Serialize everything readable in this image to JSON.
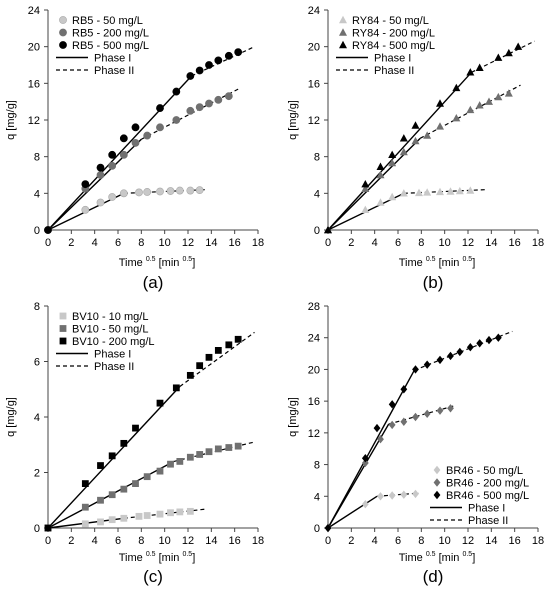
{
  "chart_data": [
    {
      "type": "scatter",
      "caption": "(a)",
      "xlabel": "Time",
      "xlabel_sup": "0.5",
      "xlabel_unit": "[min",
      "xlabel_unit_sup": "0.5",
      "xlabel_end": "]",
      "ylabel": "q [mg/g]",
      "xlim": [
        0,
        18
      ],
      "ylim": [
        0,
        24
      ],
      "xticks": [
        0,
        2,
        4,
        6,
        8,
        10,
        12,
        14,
        16,
        18
      ],
      "yticks": [
        0,
        4,
        8,
        12,
        16,
        20,
        24
      ],
      "legend_position": "top-left",
      "marker": "circle",
      "series": [
        {
          "name": "RB5 - 50 mg/L",
          "color": "#c8c8c8",
          "points": [
            [
              0,
              0
            ],
            [
              3.2,
              2.2
            ],
            [
              4.5,
              3.0
            ],
            [
              5.5,
              3.6
            ],
            [
              6.5,
              4.0
            ],
            [
              7.8,
              4.1
            ],
            [
              8.5,
              4.15
            ],
            [
              9.6,
              4.2
            ],
            [
              10.5,
              4.25
            ],
            [
              11.3,
              4.3
            ],
            [
              12.2,
              4.3
            ],
            [
              13.0,
              4.35
            ]
          ],
          "phase1": [
            [
              0,
              0
            ],
            [
              6.5,
              4.0
            ]
          ],
          "phase2": [
            [
              6.5,
              4.0
            ],
            [
              13.5,
              4.4
            ]
          ]
        },
        {
          "name": "RB5 - 200 mg/L",
          "color": "#707070",
          "points": [
            [
              0,
              0
            ],
            [
              3.2,
              4.5
            ],
            [
              4.5,
              6.0
            ],
            [
              5.5,
              7.0
            ],
            [
              6.5,
              8.2
            ],
            [
              7.5,
              9.5
            ],
            [
              8.5,
              10.3
            ],
            [
              9.6,
              11.2
            ],
            [
              11.0,
              12.0
            ],
            [
              12.2,
              13.0
            ],
            [
              13.0,
              13.4
            ],
            [
              13.8,
              13.8
            ],
            [
              14.6,
              14.2
            ],
            [
              15.5,
              14.6
            ]
          ],
          "phase1": [
            [
              0,
              0
            ],
            [
              8.0,
              9.9
            ]
          ],
          "phase2": [
            [
              8.0,
              9.9
            ],
            [
              16.5,
              15.5
            ]
          ]
        },
        {
          "name": "RB5 - 500 mg/L",
          "color": "#000000",
          "points": [
            [
              0,
              0
            ],
            [
              3.2,
              5.0
            ],
            [
              4.5,
              6.8
            ],
            [
              5.5,
              8.2
            ],
            [
              6.5,
              10.0
            ],
            [
              7.5,
              11.2
            ],
            [
              9.6,
              13.3
            ],
            [
              11.0,
              15.1
            ],
            [
              12.2,
              16.8
            ],
            [
              13.0,
              17.4
            ],
            [
              13.8,
              18.0
            ],
            [
              14.6,
              18.5
            ],
            [
              15.5,
              19.0
            ],
            [
              16.3,
              19.4
            ]
          ],
          "phase1": [
            [
              0,
              0
            ],
            [
              12.3,
              16.8
            ]
          ],
          "phase2": [
            [
              12.3,
              16.8
            ],
            [
              17.7,
              20.0
            ]
          ]
        }
      ]
    },
    {
      "type": "scatter",
      "caption": "(b)",
      "xlabel": "Time",
      "xlabel_sup": "0.5",
      "xlabel_unit": "[min",
      "xlabel_unit_sup": "0.5",
      "xlabel_end": "]",
      "ylabel": "q [mg/g]",
      "xlim": [
        0,
        18
      ],
      "ylim": [
        0,
        24
      ],
      "xticks": [
        0,
        2,
        4,
        6,
        8,
        10,
        12,
        14,
        16,
        18
      ],
      "yticks": [
        0,
        4,
        8,
        12,
        16,
        20,
        24
      ],
      "legend_position": "top-left",
      "marker": "triangle",
      "series": [
        {
          "name": "RY84 - 50 mg/L",
          "color": "#c8c8c8",
          "points": [
            [
              0,
              0
            ],
            [
              3.2,
              2.2
            ],
            [
              4.5,
              3.0
            ],
            [
              5.5,
              3.6
            ],
            [
              6.5,
              4.0
            ],
            [
              7.8,
              4.05
            ],
            [
              8.5,
              4.1
            ],
            [
              9.6,
              4.15
            ],
            [
              10.5,
              4.2
            ],
            [
              11.3,
              4.25
            ],
            [
              12.2,
              4.3
            ]
          ],
          "phase1": [
            [
              0,
              0
            ],
            [
              6.5,
              4.0
            ]
          ],
          "phase2": [
            [
              6.5,
              4.0
            ],
            [
              13.5,
              4.4
            ]
          ]
        },
        {
          "name": "RY84 - 200 mg/L",
          "color": "#707070",
          "points": [
            [
              0,
              0
            ],
            [
              3.2,
              4.5
            ],
            [
              4.5,
              6.0
            ],
            [
              5.5,
              7.3
            ],
            [
              6.5,
              8.5
            ],
            [
              7.5,
              9.7
            ],
            [
              8.5,
              10.3
            ],
            [
              9.6,
              11.3
            ],
            [
              11.0,
              12.2
            ],
            [
              12.2,
              13.1
            ],
            [
              13.0,
              13.6
            ],
            [
              13.8,
              14.0
            ],
            [
              14.6,
              14.5
            ],
            [
              15.5,
              14.9
            ]
          ],
          "phase1": [
            [
              0,
              0
            ],
            [
              7.9,
              10.0
            ]
          ],
          "phase2": [
            [
              7.9,
              10.0
            ],
            [
              16.5,
              15.8
            ]
          ]
        },
        {
          "name": "RY84 - 500 mg/L",
          "color": "#000000",
          "points": [
            [
              0,
              0
            ],
            [
              3.2,
              5.0
            ],
            [
              4.5,
              6.9
            ],
            [
              5.5,
              8.2
            ],
            [
              6.5,
              10.0
            ],
            [
              7.5,
              11.4
            ],
            [
              9.6,
              13.8
            ],
            [
              11.0,
              15.5
            ],
            [
              12.2,
              17.2
            ],
            [
              13.0,
              17.7
            ],
            [
              14.6,
              18.8
            ],
            [
              15.5,
              19.3
            ],
            [
              16.3,
              20.0
            ]
          ],
          "phase1": [
            [
              0,
              0
            ],
            [
              12.3,
              17.2
            ]
          ],
          "phase2": [
            [
              12.3,
              17.2
            ],
            [
              17.7,
              20.6
            ]
          ]
        }
      ]
    },
    {
      "type": "scatter",
      "caption": "(c)",
      "xlabel": "Time",
      "xlabel_sup": "0.5",
      "xlabel_unit": "[min",
      "xlabel_unit_sup": "0.5",
      "xlabel_end": "]",
      "ylabel": "q [mg/g]",
      "xlim": [
        0,
        18
      ],
      "ylim": [
        0,
        8
      ],
      "xticks": [
        0,
        2,
        4,
        6,
        8,
        10,
        12,
        14,
        16,
        18
      ],
      "yticks": [
        0,
        2,
        4,
        6,
        8
      ],
      "legend_position": "top-left",
      "marker": "square",
      "series": [
        {
          "name": "BV10 - 10 mg/L",
          "color": "#c8c8c8",
          "points": [
            [
              0,
              0
            ],
            [
              3.2,
              0.15
            ],
            [
              4.5,
              0.22
            ],
            [
              5.5,
              0.3
            ],
            [
              6.5,
              0.35
            ],
            [
              7.8,
              0.42
            ],
            [
              8.5,
              0.45
            ],
            [
              9.6,
              0.5
            ],
            [
              10.5,
              0.55
            ],
            [
              11.3,
              0.58
            ],
            [
              12.2,
              0.6
            ]
          ],
          "phase1": [
            [
              0,
              0
            ],
            [
              6.5,
              0.35
            ]
          ],
          "phase2": [
            [
              6.5,
              0.35
            ],
            [
              13.5,
              0.68
            ]
          ]
        },
        {
          "name": "BV10 - 50 mg/L",
          "color": "#707070",
          "points": [
            [
              0,
              0
            ],
            [
              3.2,
              0.75
            ],
            [
              4.5,
              1.0
            ],
            [
              5.5,
              1.2
            ],
            [
              6.5,
              1.4
            ],
            [
              7.5,
              1.6
            ],
            [
              8.5,
              1.85
            ],
            [
              9.6,
              2.05
            ],
            [
              10.5,
              2.3
            ],
            [
              11.3,
              2.4
            ],
            [
              12.2,
              2.55
            ],
            [
              13.0,
              2.65
            ],
            [
              13.8,
              2.75
            ],
            [
              14.6,
              2.85
            ],
            [
              15.5,
              2.9
            ],
            [
              16.3,
              2.95
            ]
          ],
          "phase1": [
            [
              0,
              0
            ],
            [
              10.8,
              2.4
            ]
          ],
          "phase2": [
            [
              10.8,
              2.4
            ],
            [
              17.7,
              3.1
            ]
          ]
        },
        {
          "name": "BV10 - 200 mg/L",
          "color": "#000000",
          "points": [
            [
              0,
              0
            ],
            [
              3.2,
              1.6
            ],
            [
              4.5,
              2.25
            ],
            [
              5.5,
              2.6
            ],
            [
              6.5,
              3.05
            ],
            [
              7.5,
              3.6
            ],
            [
              9.6,
              4.5
            ],
            [
              11.0,
              5.05
            ],
            [
              12.2,
              5.5
            ],
            [
              13.0,
              5.85
            ],
            [
              13.8,
              6.15
            ],
            [
              14.6,
              6.4
            ],
            [
              15.5,
              6.6
            ],
            [
              16.3,
              6.8
            ]
          ],
          "phase1": [
            [
              0,
              0
            ],
            [
              11.3,
              5.1
            ]
          ],
          "phase2": [
            [
              11.3,
              5.1
            ],
            [
              17.7,
              7.05
            ]
          ]
        }
      ]
    },
    {
      "type": "scatter",
      "caption": "(d)",
      "xlabel": "Time",
      "xlabel_sup": "0.5",
      "xlabel_unit": "[min",
      "xlabel_unit_sup": "0.5",
      "xlabel_end": "]",
      "ylabel": "q [mg/g]",
      "xlim": [
        0,
        18
      ],
      "ylim": [
        0,
        28
      ],
      "xticks": [
        0,
        2,
        4,
        6,
        8,
        10,
        12,
        14,
        16,
        18
      ],
      "yticks": [
        0,
        4,
        8,
        12,
        16,
        20,
        24,
        28
      ],
      "legend_position": "bottom-right",
      "marker": "diamond",
      "series": [
        {
          "name": "BR46 - 50 mg/L",
          "color": "#c8c8c8",
          "points": [
            [
              0,
              0
            ],
            [
              3.2,
              3.0
            ],
            [
              4.5,
              4.0
            ],
            [
              5.5,
              4.1
            ],
            [
              6.5,
              4.2
            ],
            [
              7.5,
              4.3
            ]
          ],
          "phase1": [
            [
              0,
              0
            ],
            [
              4.2,
              4.0
            ]
          ],
          "phase2": [
            [
              4.2,
              4.0
            ],
            [
              7.8,
              4.4
            ]
          ]
        },
        {
          "name": "BR46 - 200 mg/L",
          "color": "#707070",
          "points": [
            [
              0,
              0
            ],
            [
              3.2,
              8.2
            ],
            [
              4.5,
              11.2
            ],
            [
              5.5,
              13.0
            ],
            [
              6.5,
              13.4
            ],
            [
              7.5,
              14.0
            ],
            [
              8.5,
              14.4
            ],
            [
              9.6,
              14.8
            ],
            [
              10.5,
              15.1
            ]
          ],
          "phase1": [
            [
              0,
              0
            ],
            [
              5.2,
              13.1
            ]
          ],
          "phase2": [
            [
              5.2,
              13.1
            ],
            [
              10.8,
              15.4
            ]
          ]
        },
        {
          "name": "BR46 - 500 mg/L",
          "color": "#000000",
          "points": [
            [
              0,
              0
            ],
            [
              3.2,
              8.8
            ],
            [
              4.2,
              12.6
            ],
            [
              5.5,
              15.6
            ],
            [
              6.5,
              17.5
            ],
            [
              7.5,
              20.0
            ],
            [
              8.5,
              20.6
            ],
            [
              9.6,
              21.2
            ],
            [
              10.5,
              21.7
            ],
            [
              11.3,
              22.2
            ],
            [
              12.2,
              22.8
            ],
            [
              13.0,
              23.3
            ],
            [
              13.8,
              23.7
            ],
            [
              14.6,
              24.0
            ]
          ],
          "phase1": [
            [
              0,
              0
            ],
            [
              7.4,
              19.9
            ]
          ],
          "phase2": [
            [
              7.4,
              19.9
            ],
            [
              15.8,
              24.8
            ]
          ]
        }
      ]
    }
  ],
  "legend_lines": {
    "phase1": "Phase  I",
    "phase2": "Phase  II"
  }
}
